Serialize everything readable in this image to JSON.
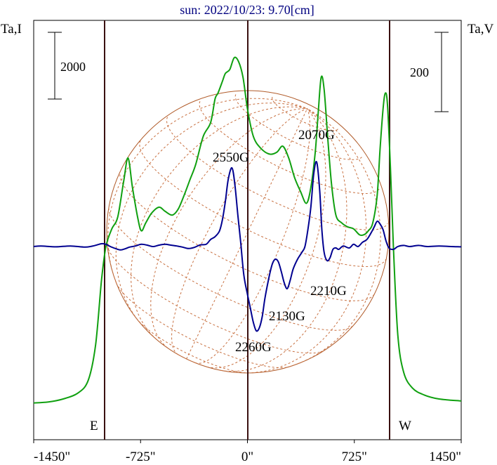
{
  "title": "sun: 2022/10/23: 9.70[cm]",
  "left_axis_label": "Ta,I",
  "right_axis_label": "Ta,V",
  "scale_bar_left": "2000",
  "scale_bar_right": "200",
  "limb_east": "E",
  "limb_west": "W",
  "field_labels": [
    "2550G",
    "2070G",
    "2210G",
    "2130G",
    "2260G"
  ],
  "colors": {
    "intensity": "#10a010",
    "circular_polarization": "#000090",
    "limb_lines": "#3a1010",
    "solar_disk": "#b05a28",
    "grid": "#c87040",
    "title": "#000080"
  },
  "chart_data": {
    "type": "line",
    "x_unit": "arcsec",
    "xlim": [
      -1450,
      1450
    ],
    "x_ticks": [
      -1450,
      -725,
      0,
      725,
      1450
    ],
    "x_tick_labels": [
      "-1450\"",
      "-725\"",
      "0\"",
      "725\"",
      "1450\""
    ],
    "limb_positions": [
      -970,
      970
    ],
    "series": [
      {
        "name": "Ta,I",
        "points": [
          [
            -1450,
            0.05
          ],
          [
            -1350,
            0.1
          ],
          [
            -1250,
            0.25
          ],
          [
            -1150,
            0.55
          ],
          [
            -1080,
            1.2
          ],
          [
            -1030,
            3.0
          ],
          [
            -990,
            6.3
          ],
          [
            -960,
            8.0
          ],
          [
            -920,
            8.9
          ],
          [
            -880,
            9.5
          ],
          [
            -840,
            11.3
          ],
          [
            -810,
            12.5
          ],
          [
            -780,
            11.0
          ],
          [
            -745,
            9.5
          ],
          [
            -720,
            8.8
          ],
          [
            -690,
            9.2
          ],
          [
            -650,
            9.7
          ],
          [
            -600,
            10.0
          ],
          [
            -560,
            9.8
          ],
          [
            -510,
            9.6
          ],
          [
            -470,
            9.9
          ],
          [
            -430,
            10.6
          ],
          [
            -390,
            11.4
          ],
          [
            -350,
            12.2
          ],
          [
            -300,
            13.6
          ],
          [
            -250,
            14.3
          ],
          [
            -220,
            15.5
          ],
          [
            -200,
            15.8
          ],
          [
            -170,
            16.4
          ],
          [
            -150,
            16.8
          ],
          [
            -120,
            17.0
          ],
          [
            -90,
            17.6
          ],
          [
            -60,
            17.4
          ],
          [
            -30,
            16.6
          ],
          [
            0,
            15.0
          ],
          [
            40,
            13.6
          ],
          [
            90,
            13.0
          ],
          [
            150,
            12.7
          ],
          [
            200,
            12.8
          ],
          [
            240,
            13.1
          ],
          [
            280,
            12.5
          ],
          [
            320,
            11.5
          ],
          [
            360,
            10.8
          ],
          [
            400,
            10.2
          ],
          [
            430,
            11.0
          ],
          [
            460,
            12.8
          ],
          [
            480,
            14.8
          ],
          [
            500,
            16.6
          ],
          [
            520,
            16.0
          ],
          [
            545,
            13.5
          ],
          [
            570,
            11.2
          ],
          [
            600,
            9.6
          ],
          [
            640,
            9.2
          ],
          [
            680,
            9.0
          ],
          [
            720,
            8.9
          ],
          [
            760,
            8.6
          ],
          [
            790,
            8.6
          ],
          [
            820,
            8.8
          ],
          [
            850,
            9.2
          ],
          [
            880,
            10.6
          ],
          [
            900,
            13.0
          ],
          [
            920,
            15.0
          ],
          [
            935,
            15.8
          ],
          [
            950,
            15.2
          ],
          [
            970,
            12.0
          ],
          [
            990,
            8.0
          ],
          [
            1020,
            3.5
          ],
          [
            1060,
            1.6
          ],
          [
            1120,
            0.8
          ],
          [
            1200,
            0.45
          ],
          [
            1300,
            0.25
          ],
          [
            1450,
            0.15
          ]
        ]
      },
      {
        "name": "Ta,V",
        "points": [
          [
            -1450,
            0.0
          ],
          [
            -1400,
            0.02
          ],
          [
            -1300,
            -0.01
          ],
          [
            -1200,
            0.02
          ],
          [
            -1100,
            -0.02
          ],
          [
            -1040,
            0.03
          ],
          [
            -990,
            0.1
          ],
          [
            -960,
            0.08
          ],
          [
            -930,
            0.0
          ],
          [
            -890,
            -0.08
          ],
          [
            -860,
            -0.12
          ],
          [
            -830,
            -0.08
          ],
          [
            -800,
            -0.02
          ],
          [
            -760,
            0.02
          ],
          [
            -720,
            0.08
          ],
          [
            -680,
            0.05
          ],
          [
            -640,
            0.0
          ],
          [
            -600,
            0.05
          ],
          [
            -560,
            0.08
          ],
          [
            -520,
            0.05
          ],
          [
            -480,
            0.02
          ],
          [
            -440,
            -0.02
          ],
          [
            -400,
            -0.07
          ],
          [
            -360,
            -0.03
          ],
          [
            -320,
            0.06
          ],
          [
            -280,
            0.08
          ],
          [
            -250,
            0.25
          ],
          [
            -220,
            0.35
          ],
          [
            -190,
            0.55
          ],
          [
            -170,
            0.95
          ],
          [
            -150,
            1.6
          ],
          [
            -130,
            2.4
          ],
          [
            -105,
            2.8
          ],
          [
            -85,
            2.2
          ],
          [
            -65,
            1.1
          ],
          [
            -45,
            0.1
          ],
          [
            -25,
            -1.0
          ],
          [
            0,
            -1.7
          ],
          [
            20,
            -2.2
          ],
          [
            40,
            -2.7
          ],
          [
            60,
            -3.0
          ],
          [
            80,
            -2.9
          ],
          [
            100,
            -2.5
          ],
          [
            120,
            -1.8
          ],
          [
            150,
            -1.0
          ],
          [
            170,
            -0.6
          ],
          [
            190,
            -0.45
          ],
          [
            210,
            -0.55
          ],
          [
            230,
            -0.9
          ],
          [
            250,
            -1.3
          ],
          [
            270,
            -1.5
          ],
          [
            290,
            -1.2
          ],
          [
            310,
            -0.8
          ],
          [
            340,
            -0.45
          ],
          [
            370,
            -0.2
          ],
          [
            390,
            0.0
          ],
          [
            410,
            0.6
          ],
          [
            430,
            1.4
          ],
          [
            450,
            2.6
          ],
          [
            470,
            3.0
          ],
          [
            490,
            2.0
          ],
          [
            505,
            0.6
          ],
          [
            520,
            -0.2
          ],
          [
            540,
            -0.5
          ],
          [
            560,
            -0.4
          ],
          [
            580,
            -0.1
          ],
          [
            600,
            -0.05
          ],
          [
            620,
            -0.1
          ],
          [
            650,
            0.02
          ],
          [
            690,
            -0.05
          ],
          [
            720,
            0.08
          ],
          [
            750,
            0.0
          ],
          [
            780,
            0.15
          ],
          [
            810,
            0.25
          ],
          [
            840,
            0.5
          ],
          [
            860,
            0.7
          ],
          [
            880,
            0.9
          ],
          [
            900,
            0.8
          ],
          [
            920,
            0.6
          ],
          [
            940,
            0.2
          ],
          [
            960,
            -0.05
          ],
          [
            990,
            -0.1
          ],
          [
            1020,
            0.0
          ],
          [
            1060,
            0.04
          ],
          [
            1100,
            0.0
          ],
          [
            1160,
            0.04
          ],
          [
            1220,
            0.0
          ],
          [
            1300,
            0.02
          ],
          [
            1380,
            0.0
          ],
          [
            1450,
            -0.01
          ]
        ]
      }
    ]
  }
}
